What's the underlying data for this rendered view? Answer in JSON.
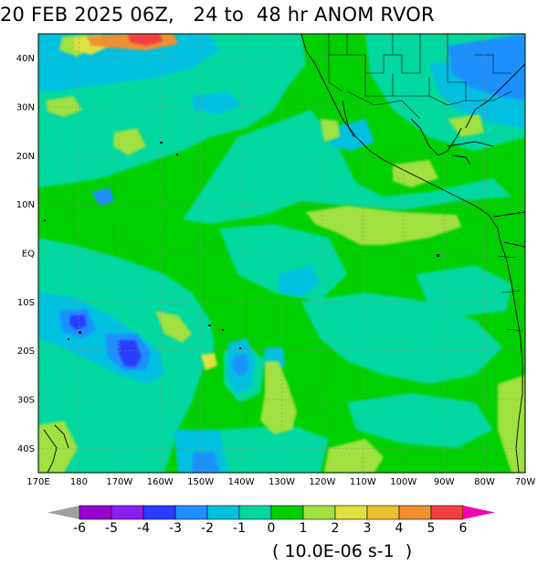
{
  "title": "20 FEB 2025 06Z,   24 to  48 hr ANOM RVOR",
  "units": "( 10.0E-06 s-1  )",
  "map": {
    "lon_labels": [
      "170E",
      "180",
      "170W",
      "160W",
      "150W",
      "140W",
      "130W",
      "120W",
      "110W",
      "100W",
      "90W",
      "80W",
      "70W"
    ],
    "lat_labels": [
      "40N",
      "30N",
      "20N",
      "10N",
      "EQ",
      "10S",
      "20S",
      "30S",
      "40S"
    ],
    "lat_values": [
      40,
      30,
      20,
      10,
      0,
      -10,
      -20,
      -30,
      -40
    ],
    "lon_range": [
      170,
      290
    ],
    "lat_range": [
      -45,
      45
    ],
    "grid": true,
    "gridline_style": "dotted"
  },
  "colorbar": {
    "tick_labels": [
      "-6",
      "-5",
      "-4",
      "-3",
      "-2",
      "-1",
      "0",
      "1",
      "2",
      "3",
      "4",
      "5",
      "6"
    ],
    "colors": [
      "#9a00d0",
      "#8a1ef0",
      "#2a3cff",
      "#1e90ff",
      "#00c0e0",
      "#00d8a0",
      "#00d000",
      "#a0e040",
      "#e0e040",
      "#e8c030",
      "#f09030",
      "#f04040",
      "#f000b0"
    ],
    "under_color": "#a0a0a0",
    "over_color": "#f000b0"
  }
}
